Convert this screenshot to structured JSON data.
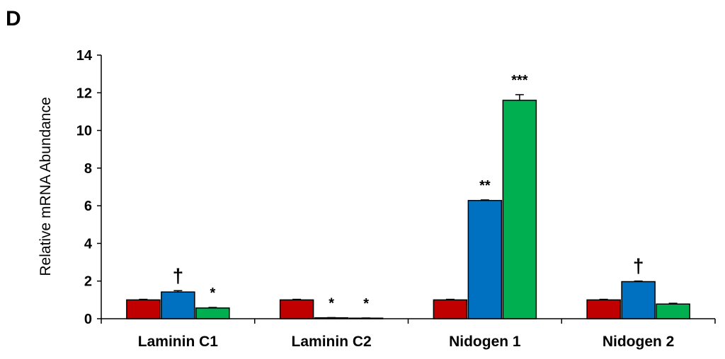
{
  "panel_label": "D",
  "chart_data": {
    "type": "bar",
    "title": "",
    "xlabel": "",
    "ylabel": "Relative mRNA Abundance",
    "ylim": [
      0,
      14
    ],
    "yticks": [
      "0",
      "2",
      "4",
      "6",
      "8",
      "10",
      "12",
      "14"
    ],
    "grid": false,
    "categories": [
      "Laminin C1",
      "Laminin C2",
      "Nidogen 1",
      "Nidogen 2"
    ],
    "series": [
      {
        "color": "#C00000",
        "values": [
          1.0,
          1.0,
          1.0,
          1.0
        ],
        "errors": [
          0.03,
          0.03,
          0.03,
          0.03
        ],
        "annotations": [
          "",
          "",
          "",
          ""
        ]
      },
      {
        "color": "#0070C0",
        "values": [
          1.42,
          0.05,
          6.28,
          1.97
        ],
        "errors": [
          0.07,
          0.01,
          0.03,
          0.03
        ],
        "annotations": [
          "†",
          "*",
          "**",
          "†"
        ]
      },
      {
        "color": "#00B050",
        "values": [
          0.57,
          0.03,
          11.6,
          0.78
        ],
        "errors": [
          0.03,
          0.01,
          0.3,
          0.04
        ],
        "annotations": [
          "*",
          "*",
          "***",
          ""
        ]
      }
    ]
  }
}
